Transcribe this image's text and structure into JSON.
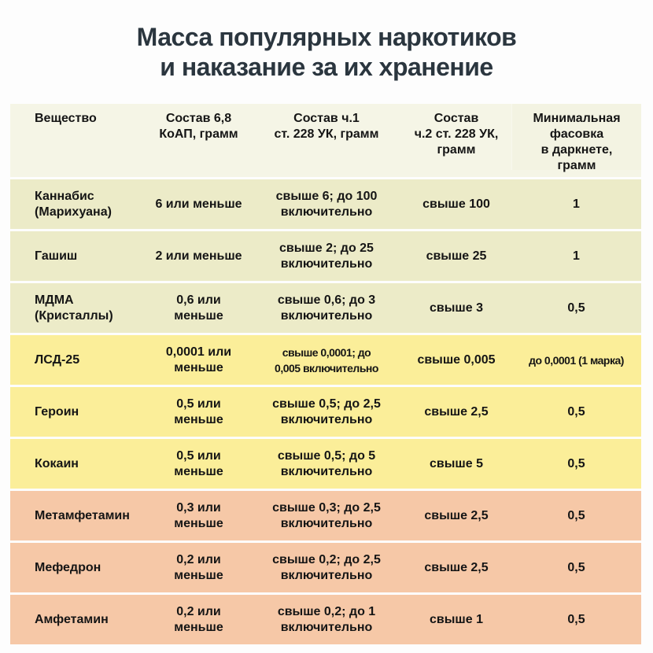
{
  "title": {
    "line1": "Масса популярных наркотиков",
    "line2": "и наказание за их хранение"
  },
  "colors": {
    "header_bg": "#f5f5e6",
    "cannabis_group_bg": "#ecebc8",
    "yellow_group_bg": "#fbee99",
    "orange_group_bg": "#f6c8a7",
    "title_color": "#2b363f"
  },
  "table": {
    "headers": [
      "Вещество",
      "Состав 6,8\nКоАП, грамм",
      "Состав ч.1\nст. 228 УК, грамм",
      "Состав\nч.2 ст. 228 УК,\nграмм",
      "Минимальная\nфасовка\nв даркнете,\nграмм"
    ],
    "rows": [
      {
        "substance": "Каннабис\n(Марихуана)",
        "koap": "6 или меньше",
        "uk1": "свыше 6; до 100\nвключительно",
        "uk2": "свыше 100",
        "darknet": "1",
        "group": "g"
      },
      {
        "substance": "Гашиш",
        "koap": "2 или меньше",
        "uk1": "свыше 2; до 25\nвключительно",
        "uk2": "свыше 25",
        "darknet": "1",
        "group": "g"
      },
      {
        "substance": "МДМА\n(Кристаллы)",
        "koap": "0,6 или\nменьше",
        "uk1": "свыше 0,6; до 3\nвключительно",
        "uk2": "свыше 3",
        "darknet": "0,5",
        "group": "g"
      },
      {
        "substance": "ЛСД-25",
        "koap": "0,0001 или\nменьше",
        "uk1": "свыше 0,0001; до\n0,005 включительно",
        "uk2": "свыше 0,005",
        "darknet": "до 0,0001 (1 марка)",
        "group": "y"
      },
      {
        "substance": "Героин",
        "koap": "0,5 или\nменьше",
        "uk1": "свыше 0,5; до 2,5\nвключительно",
        "uk2": "свыше 2,5",
        "darknet": "0,5",
        "group": "y"
      },
      {
        "substance": "Кокаин",
        "koap": "0,5 или\nменьше",
        "uk1": "свыше 0,5; до 5\nвключительно",
        "uk2": "свыше 5",
        "darknet": "0,5",
        "group": "y"
      },
      {
        "substance": "Метамфетамин",
        "koap": "0,3 или\nменьше",
        "uk1": "свыше 0,3; до 2,5\nвключительно",
        "uk2": "свыше 2,5",
        "darknet": "0,5",
        "group": "o"
      },
      {
        "substance": "Мефедрон",
        "koap": "0,2 или\nменьше",
        "uk1": "свыше 0,2; до 2,5\nвключительно",
        "uk2": "свыше 2,5",
        "darknet": "0,5",
        "group": "o"
      },
      {
        "substance": "Амфетамин",
        "koap": "0,2 или\nменьше",
        "uk1": "свыше 0,2; до 1\nвключительно",
        "uk2": "свыше 1",
        "darknet": "0,5",
        "group": "o"
      }
    ]
  }
}
